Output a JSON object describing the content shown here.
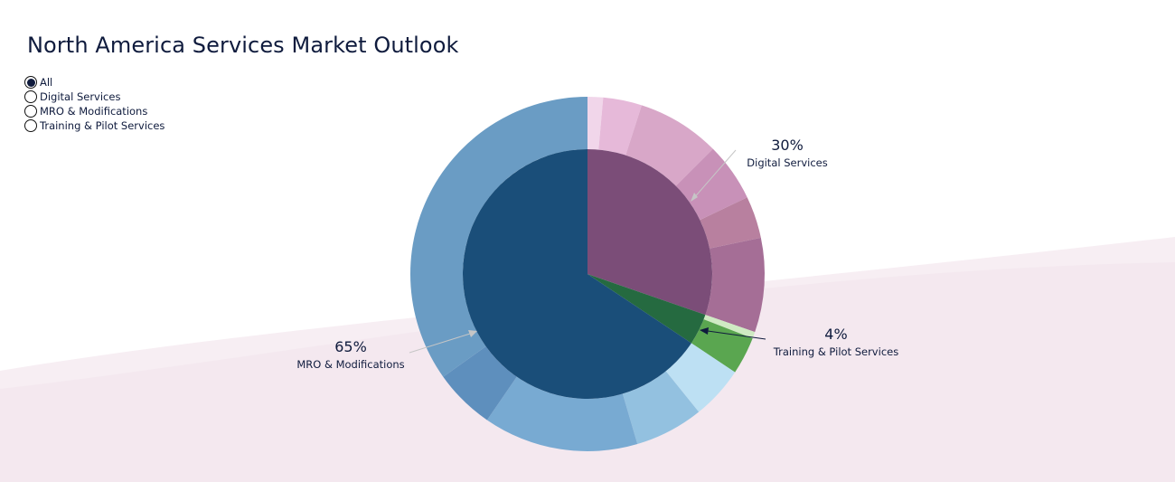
{
  "page": {
    "title": "North America Services Market Outlook"
  },
  "filters": {
    "selected": "All",
    "options": [
      "All",
      "Digital Services",
      "MRO & Modifications",
      "Training & Pilot Services"
    ]
  },
  "chart_data": {
    "type": "pie",
    "style": "sunburst",
    "inner": [
      {
        "name": "Digital Services",
        "value": 30,
        "label": "30%",
        "color": "#7b4d78"
      },
      {
        "name": "Training & Pilot Services",
        "value": 4,
        "label": "4%",
        "color": "#256a40"
      },
      {
        "name": "MRO & Modifications",
        "value": 65,
        "label": "65%",
        "color": "#1a4e79"
      }
    ],
    "outer": [
      {
        "parent": "Digital Services",
        "value": 1.4,
        "color": "#f1d6ea"
      },
      {
        "parent": "Digital Services",
        "value": 3.5,
        "color": "#e6b9d9"
      },
      {
        "parent": "Digital Services",
        "value": 7.5,
        "color": "#d8a7c8"
      },
      {
        "parent": "Digital Services",
        "value": 5.3,
        "color": "#c891b8"
      },
      {
        "parent": "Digital Services",
        "value": 3.8,
        "color": "#b8809f"
      },
      {
        "parent": "Digital Services",
        "value": 8.5,
        "color": "#a56e96"
      },
      {
        "parent": "Training & Pilot Services",
        "value": 0.6,
        "color": "#cfeac3"
      },
      {
        "parent": "Training & Pilot Services",
        "value": 3.4,
        "color": "#5aa650"
      },
      {
        "parent": "MRO & Modifications",
        "value": 4.8,
        "color": "#bde0f3"
      },
      {
        "parent": "MRO & Modifications",
        "value": 6.2,
        "color": "#93c1e0"
      },
      {
        "parent": "MRO & Modifications",
        "value": 14.0,
        "color": "#78aad2"
      },
      {
        "parent": "MRO & Modifications",
        "value": 5.5,
        "color": "#5e8fbd"
      },
      {
        "parent": "MRO & Modifications",
        "value": 34.5,
        "color": "#6a9cc4"
      }
    ],
    "legend": "none",
    "grid": false
  },
  "colors": {
    "text": "#0f1b3d",
    "background_wave": "#f3e6ee"
  }
}
